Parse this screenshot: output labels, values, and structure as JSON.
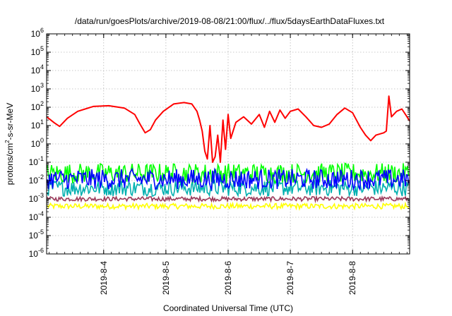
{
  "chart_data": {
    "type": "line",
    "title": "/data/run/goesPlots/archive/2019-08-08/21:00/flux/../flux/5daysEarthDataFluxes.txt",
    "xlabel": "Coordinated Universal Time (UTC)",
    "ylabel": {
      "prefix": "protons/cm",
      "sup": "2",
      "suffix": "-s-sr-MeV"
    },
    "yscale": "log",
    "ylim": [
      1e-06,
      1000000.0
    ],
    "xlim": [
      "2019-08-03 02:00",
      "2019-08-08 22:00"
    ],
    "grid": true,
    "y_ticks": [
      {
        "exp": "-6",
        "value": 1e-06
      },
      {
        "exp": "-5",
        "value": 1e-05
      },
      {
        "exp": "-4",
        "value": 0.0001
      },
      {
        "exp": "-3",
        "value": 0.001
      },
      {
        "exp": "-2",
        "value": 0.01
      },
      {
        "exp": "-1",
        "value": 0.1
      },
      {
        "exp": "0",
        "value": 1
      },
      {
        "exp": "1",
        "value": 10.0
      },
      {
        "exp": "2",
        "value": 100.0
      },
      {
        "exp": "3",
        "value": 1000.0
      },
      {
        "exp": "4",
        "value": 10000.0
      },
      {
        "exp": "5",
        "value": 100000.0
      },
      {
        "exp": "6",
        "value": 1000000.0
      }
    ],
    "x_ticks": [
      {
        "label": "2019-8-4",
        "t": "2019-08-04 00:00"
      },
      {
        "label": "2019-8-5",
        "t": "2019-08-05 00:00"
      },
      {
        "label": "2019-8-6",
        "t": "2019-08-06 00:00"
      },
      {
        "label": "2019-8-7",
        "t": "2019-08-07 00:00"
      },
      {
        "label": "2019-8-8",
        "t": "2019-08-08 00:00"
      }
    ],
    "series": [
      {
        "color": "#ff0000",
        "style": "line",
        "points": [
          [
            "2019-08-03 02:00",
            30
          ],
          [
            "2019-08-03 05:00",
            14
          ],
          [
            "2019-08-03 07:00",
            9
          ],
          [
            "2019-08-03 10:00",
            25
          ],
          [
            "2019-08-03 14:00",
            60
          ],
          [
            "2019-08-03 20:00",
            110
          ],
          [
            "2019-08-04 02:00",
            120
          ],
          [
            "2019-08-04 08:00",
            90
          ],
          [
            "2019-08-04 12:00",
            40
          ],
          [
            "2019-08-04 14:00",
            12
          ],
          [
            "2019-08-04 16:00",
            4
          ],
          [
            "2019-08-04 18:00",
            6
          ],
          [
            "2019-08-04 20:00",
            20
          ],
          [
            "2019-08-04 23:00",
            60
          ],
          [
            "2019-08-05 03:00",
            150
          ],
          [
            "2019-08-05 07:00",
            180
          ],
          [
            "2019-08-05 10:00",
            150
          ],
          [
            "2019-08-05 12:00",
            60
          ],
          [
            "2019-08-05 13:00",
            20
          ],
          [
            "2019-08-05 14:00",
            5
          ],
          [
            "2019-08-05 15:00",
            0.4
          ],
          [
            "2019-08-05 16:00",
            0.15
          ],
          [
            "2019-08-05 17:00",
            10
          ],
          [
            "2019-08-05 18:00",
            0.1
          ],
          [
            "2019-08-05 19:00",
            0.2
          ],
          [
            "2019-08-05 20:00",
            3
          ],
          [
            "2019-08-05 21:00",
            0.1
          ],
          [
            "2019-08-05 22:00",
            20
          ],
          [
            "2019-08-05 23:00",
            0.5
          ],
          [
            "2019-08-06 00:00",
            40
          ],
          [
            "2019-08-06 01:00",
            2
          ],
          [
            "2019-08-06 03:00",
            15
          ],
          [
            "2019-08-06 06:00",
            30
          ],
          [
            "2019-08-06 09:00",
            12
          ],
          [
            "2019-08-06 12:00",
            40
          ],
          [
            "2019-08-06 14:00",
            8
          ],
          [
            "2019-08-06 16:00",
            60
          ],
          [
            "2019-08-06 18:00",
            15
          ],
          [
            "2019-08-06 20:00",
            70
          ],
          [
            "2019-08-06 22:00",
            25
          ],
          [
            "2019-08-07 00:00",
            60
          ],
          [
            "2019-08-07 03:00",
            80
          ],
          [
            "2019-08-07 06:00",
            30
          ],
          [
            "2019-08-07 09:00",
            10
          ],
          [
            "2019-08-07 12:00",
            8
          ],
          [
            "2019-08-07 15:00",
            12
          ],
          [
            "2019-08-07 18:00",
            40
          ],
          [
            "2019-08-07 21:00",
            90
          ],
          [
            "2019-08-08 00:00",
            50
          ],
          [
            "2019-08-08 03:00",
            8
          ],
          [
            "2019-08-08 05:00",
            3
          ],
          [
            "2019-08-08 07:00",
            1.5
          ],
          [
            "2019-08-08 09:00",
            3
          ],
          [
            "2019-08-08 12:00",
            4
          ],
          [
            "2019-08-08 13:00",
            5
          ],
          [
            "2019-08-08 14:00",
            400
          ],
          [
            "2019-08-08 15:00",
            30
          ],
          [
            "2019-08-08 17:00",
            60
          ],
          [
            "2019-08-08 19:00",
            80
          ],
          [
            "2019-08-08 21:00",
            30
          ],
          [
            "2019-08-08 22:00",
            18
          ]
        ]
      },
      {
        "color": "#00ff00",
        "style": "noise",
        "center": 0.025,
        "spread_decades": 0.55
      },
      {
        "color": "#00b0b0",
        "style": "noise",
        "center": 0.004,
        "spread_decades": 0.45
      },
      {
        "color": "#0000ff",
        "style": "noise",
        "center": 0.012,
        "spread_decades": 0.55
      },
      {
        "color": "#9b3a5a",
        "style": "noise",
        "center": 0.001,
        "spread_decades": 0.12
      },
      {
        "color": "#ffff00",
        "style": "noise",
        "center": 0.0004,
        "spread_decades": 0.15
      }
    ]
  }
}
